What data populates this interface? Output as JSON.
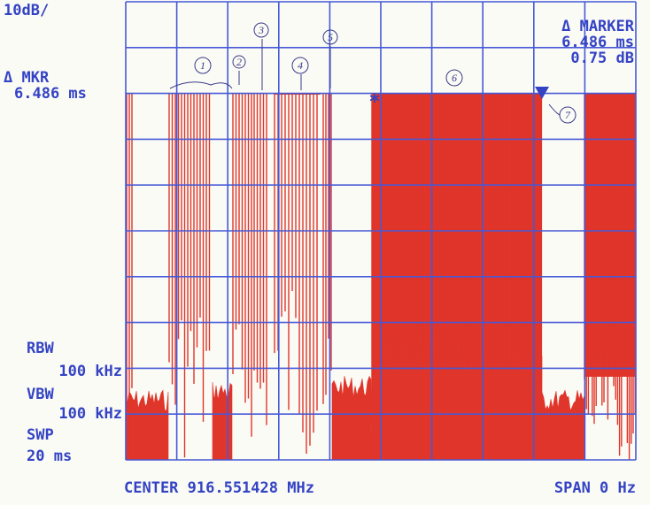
{
  "header": {
    "scale": "10dB/",
    "marker_label": "Δ MKR",
    "marker_value": "6.486 ms"
  },
  "delta_marker": {
    "title": "Δ MARKER",
    "time": "6.486 ms",
    "level": "0.75 dB"
  },
  "settings": {
    "rbw_label": "RBW",
    "rbw": "100 kHz",
    "vbw_label": "VBW",
    "vbw": "100 kHz",
    "swp_label": "SWP",
    "swp": "20 ms"
  },
  "footer": {
    "center": "CENTER 916.551428 MHz",
    "span": "SPAN 0 Hz"
  },
  "annotations": [
    "1",
    "2",
    "3",
    "4",
    "5",
    "6",
    "7"
  ]
}
